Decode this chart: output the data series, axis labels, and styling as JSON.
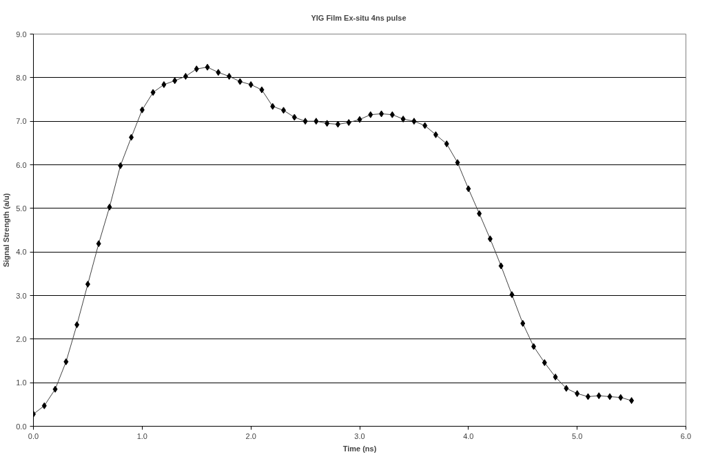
{
  "chart_data": {
    "type": "line",
    "title": "YIG Film  Ex-situ 4ns pulse",
    "xlabel": "Time (ns)",
    "ylabel": "Signal Strength (a/u)",
    "x": [
      0.0,
      0.1,
      0.2,
      0.3,
      0.4,
      0.5,
      0.6,
      0.7,
      0.8,
      0.9,
      1.0,
      1.1,
      1.2,
      1.3,
      1.4,
      1.5,
      1.6,
      1.7,
      1.8,
      1.9,
      2.0,
      2.1,
      2.2,
      2.3,
      2.4,
      2.5,
      2.6,
      2.7,
      2.8,
      2.9,
      3.0,
      3.1,
      3.2,
      3.3,
      3.4,
      3.5,
      3.6,
      3.7,
      3.8,
      3.9,
      4.0,
      4.1,
      4.2,
      4.3,
      4.4,
      4.5,
      4.6,
      4.7,
      4.8,
      4.9,
      5.0,
      5.1,
      5.2,
      5.3,
      5.4,
      5.5
    ],
    "series": [
      {
        "color": "#000000",
        "values": [
          0.28,
          0.47,
          0.85,
          1.48,
          2.33,
          3.26,
          4.19,
          5.03,
          5.98,
          6.63,
          7.26,
          7.66,
          7.84,
          7.93,
          8.03,
          8.2,
          8.24,
          8.12,
          8.03,
          7.91,
          7.84,
          7.72,
          7.34,
          7.25,
          7.09,
          7.0,
          7.0,
          6.95,
          6.93,
          6.97,
          7.04,
          7.15,
          7.17,
          7.15,
          7.05,
          7.0,
          6.9,
          6.69,
          6.48,
          6.05,
          5.45,
          4.88,
          4.3,
          3.68,
          3.02,
          2.36,
          1.83,
          1.46,
          1.13,
          0.87,
          0.75,
          0.68,
          0.7,
          0.68,
          0.66,
          0.59
        ]
      }
    ],
    "xlim": [
      0,
      6
    ],
    "ylim": [
      0,
      9
    ],
    "xticks": [
      {
        "value": 0,
        "label": "0.0"
      },
      {
        "value": 1,
        "label": "1.0"
      },
      {
        "value": 2,
        "label": "2.0"
      },
      {
        "value": 3,
        "label": "3.0"
      },
      {
        "value": 4,
        "label": "4.0"
      },
      {
        "value": 5,
        "label": "5.0"
      },
      {
        "value": 6,
        "label": "6.0"
      }
    ],
    "yticks": [
      {
        "value": 0,
        "label": "0.0"
      },
      {
        "value": 1,
        "label": "1.0"
      },
      {
        "value": 2,
        "label": "2.0"
      },
      {
        "value": 3,
        "label": "3.0"
      },
      {
        "value": 4,
        "label": "4.0"
      },
      {
        "value": 5,
        "label": "5.0"
      },
      {
        "value": 6,
        "label": "6.0"
      },
      {
        "value": 7,
        "label": "7.0"
      },
      {
        "value": 8,
        "label": "8.0"
      },
      {
        "value": 9,
        "label": "9.0"
      }
    ],
    "grid": "y",
    "marker": "diamond",
    "line_style": "solid"
  }
}
